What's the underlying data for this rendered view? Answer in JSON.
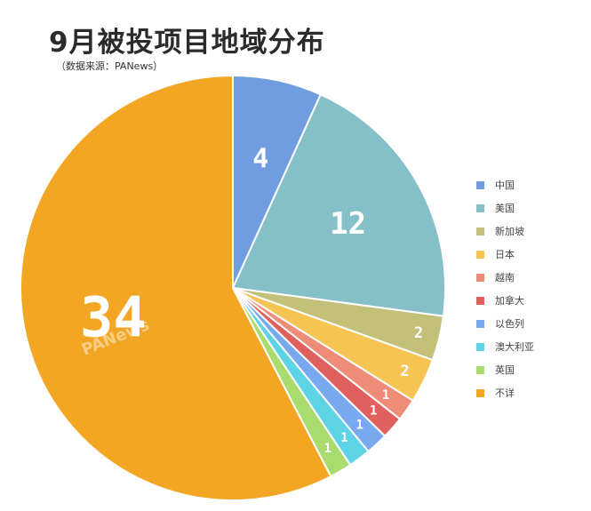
{
  "header": {
    "title": "9月被投项目地域分布",
    "subtitle": "（数据来源：PANews）"
  },
  "watermark": {
    "text": "PANews"
  },
  "chart_data": {
    "type": "pie",
    "title": "9月被投项目地域分布",
    "labels": [
      "中国",
      "美国",
      "新加坡",
      "日本",
      "越南",
      "加拿大",
      "以色列",
      "澳大利亚",
      "英国",
      "不详"
    ],
    "values": [
      4,
      12,
      2,
      2,
      1,
      1,
      1,
      1,
      1,
      34
    ],
    "data_labels": [
      "4",
      "12",
      "2",
      "2",
      "1",
      "1",
      "1",
      "1",
      "1",
      "34"
    ],
    "colors": [
      "#6f9de0",
      "#85bfc7",
      "#c3c07a",
      "#f5c452",
      "#ee8c78",
      "#e0605e",
      "#78a8ee",
      "#5fd3e6",
      "#a9db6e",
      "#f2a623"
    ],
    "start_angle": "12 o'clock",
    "direction": "clockwise",
    "legend_position": "right"
  }
}
